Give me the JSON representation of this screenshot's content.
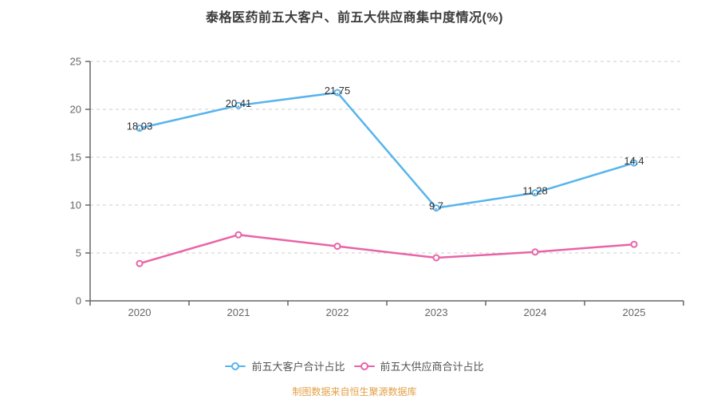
{
  "title": "泰格医药前五大客户、前五大供应商集中度情况(%)",
  "footer": {
    "source_note": "制图数据来自恒生聚源数据库",
    "color": "#e2a045"
  },
  "legend": [
    {
      "label": "前五大客户合计占比",
      "color": "#57b4ec"
    },
    {
      "label": "前五大供应商合计占比",
      "color": "#e864a6"
    }
  ],
  "axis": {
    "line_color": "#666666",
    "label_color": "#666666",
    "grid_color": "#cccccc",
    "data_label_color": "#333333"
  },
  "chart_data": {
    "type": "line",
    "title": "泰格医药前五大客户、前五大供应商集中度情况(%)",
    "categories": [
      "2020",
      "2021",
      "2022",
      "2023",
      "2024",
      "2025"
    ],
    "series": [
      {
        "name": "前五大客户合计占比",
        "color": "#57b4ec",
        "values": [
          18.03,
          20.41,
          21.75,
          9.7,
          11.28,
          14.4
        ],
        "show_labels": true
      },
      {
        "name": "前五大供应商合计占比",
        "color": "#e864a6",
        "values": [
          3.9,
          6.9,
          5.7,
          4.5,
          5.1,
          5.9
        ],
        "show_labels": false
      }
    ],
    "xlabel": "",
    "ylabel": "",
    "ylim": [
      0,
      25
    ],
    "yticks": [
      0,
      5,
      10,
      15,
      20,
      25
    ],
    "grid": "horizontal-dashed",
    "legend_position": "bottom",
    "marker": "open-circle"
  }
}
